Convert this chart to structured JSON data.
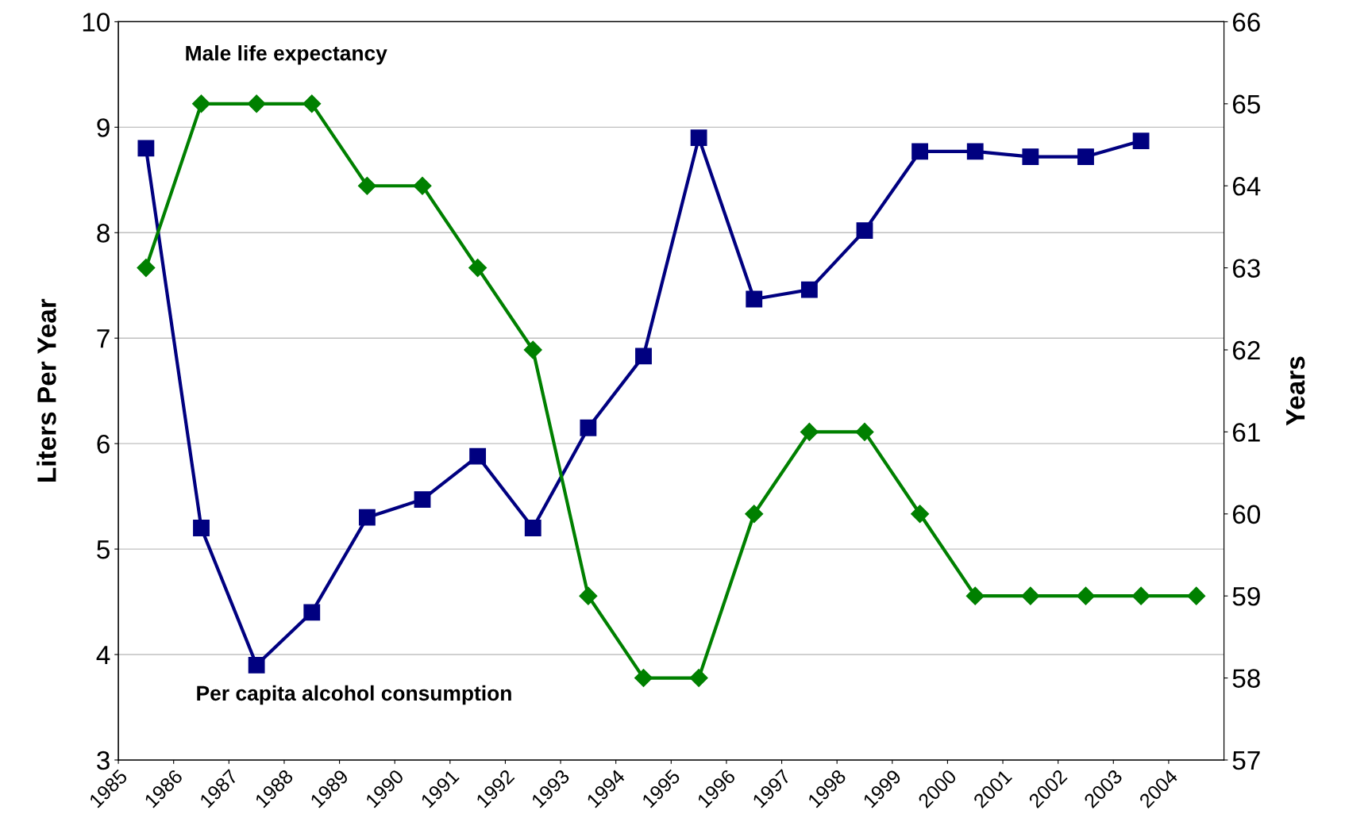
{
  "chart_data": {
    "type": "line",
    "ylabel": "Liters Per Year",
    "y2label": "Years",
    "xlim": [
      1985,
      2005
    ],
    "xticks": [
      1985,
      1986,
      1987,
      1988,
      1989,
      1990,
      1991,
      1992,
      1993,
      1994,
      1995,
      1996,
      1997,
      1998,
      1999,
      2000,
      2001,
      2002,
      2003,
      2004
    ],
    "ylim": [
      3,
      10
    ],
    "yticks": [
      3,
      4,
      5,
      6,
      7,
      8,
      9,
      10
    ],
    "y2lim": [
      57,
      66
    ],
    "y2ticks": [
      57,
      58,
      59,
      60,
      61,
      62,
      63,
      64,
      65,
      66
    ],
    "grid": "y",
    "legend": false,
    "series": [
      {
        "name": "Per capita alcohol consumption",
        "color": "#000080",
        "marker": "square",
        "x": [
          1985.5,
          1986.5,
          1987.5,
          1988.5,
          1989.5,
          1990.5,
          1991.5,
          1992.5,
          1993.5,
          1994.5,
          1995.5,
          1996.5,
          1997.5,
          1998.5,
          1999.5,
          2000.5,
          2001.5,
          2002.5,
          2003.5
        ],
        "values": [
          8.8,
          5.2,
          3.9,
          4.4,
          5.3,
          5.47,
          5.88,
          5.2,
          6.15,
          6.83,
          8.9,
          7.37,
          7.46,
          8.02,
          8.77,
          8.77,
          8.72,
          8.72,
          8.87
        ]
      },
      {
        "name": "Male life expectancy",
        "color": "#008000",
        "marker": "diamond",
        "axis": "y2",
        "x": [
          1985.5,
          1986.5,
          1987.5,
          1988.5,
          1989.5,
          1990.5,
          1991.5,
          1992.5,
          1993.5,
          1994.5,
          1995.5,
          1996.5,
          1997.5,
          1998.5,
          1999.5,
          2000.5,
          2001.5,
          2002.5,
          2003.5,
          2004.5
        ],
        "values": [
          63,
          65,
          65,
          65,
          64,
          64,
          63,
          62,
          59,
          58,
          58,
          60,
          61,
          61,
          60,
          59,
          59,
          59,
          59,
          59
        ]
      }
    ]
  }
}
